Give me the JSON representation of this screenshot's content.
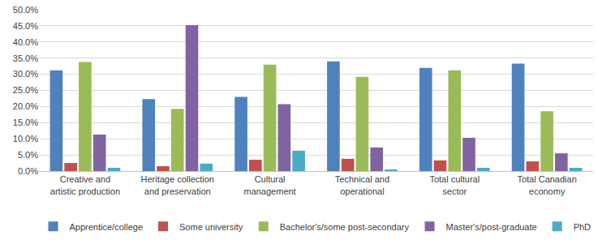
{
  "chart_data": {
    "type": "bar",
    "categories": [
      "Creative and artistic production",
      "Heritage collection and preservation",
      "Cultural management",
      "Technical and operational",
      "Total cultural sector",
      "Total Canadian economy"
    ],
    "series": [
      {
        "name": "Apprentice/college",
        "color": "#4F81BD",
        "values": [
          31.2,
          22.3,
          23.0,
          34.0,
          32.0,
          33.3
        ]
      },
      {
        "name": "Some university",
        "color": "#C0504D",
        "values": [
          2.5,
          1.5,
          3.5,
          3.8,
          3.3,
          3.0
        ]
      },
      {
        "name": "Bachelor's/some post-secondary",
        "color": "#9BBB59",
        "values": [
          33.8,
          19.3,
          33.0,
          29.2,
          31.2,
          18.5
        ]
      },
      {
        "name": "Master's/post-graduate",
        "color": "#8064A2",
        "values": [
          11.3,
          45.2,
          20.7,
          7.3,
          10.3,
          5.5
        ]
      },
      {
        "name": "PhD",
        "color": "#4BACC6",
        "values": [
          1.0,
          2.3,
          6.3,
          0.5,
          1.0,
          1.0
        ]
      }
    ],
    "ylim": [
      0,
      50
    ],
    "yticks": [
      {
        "value": 0,
        "label": "0.0%"
      },
      {
        "value": 5,
        "label": "5.0%"
      },
      {
        "value": 10,
        "label": "10.0%"
      },
      {
        "value": 15,
        "label": "15.0%"
      },
      {
        "value": 20,
        "label": "20.0%"
      },
      {
        "value": 25,
        "label": "25.0%"
      },
      {
        "value": 30,
        "label": "30.0%"
      },
      {
        "value": 35,
        "label": "35.0%"
      },
      {
        "value": 40,
        "label": "40.0%"
      },
      {
        "value": 45,
        "label": "45.0%"
      },
      {
        "value": 50,
        "label": "50.0%"
      }
    ],
    "grid": true,
    "legend": "bottom"
  }
}
